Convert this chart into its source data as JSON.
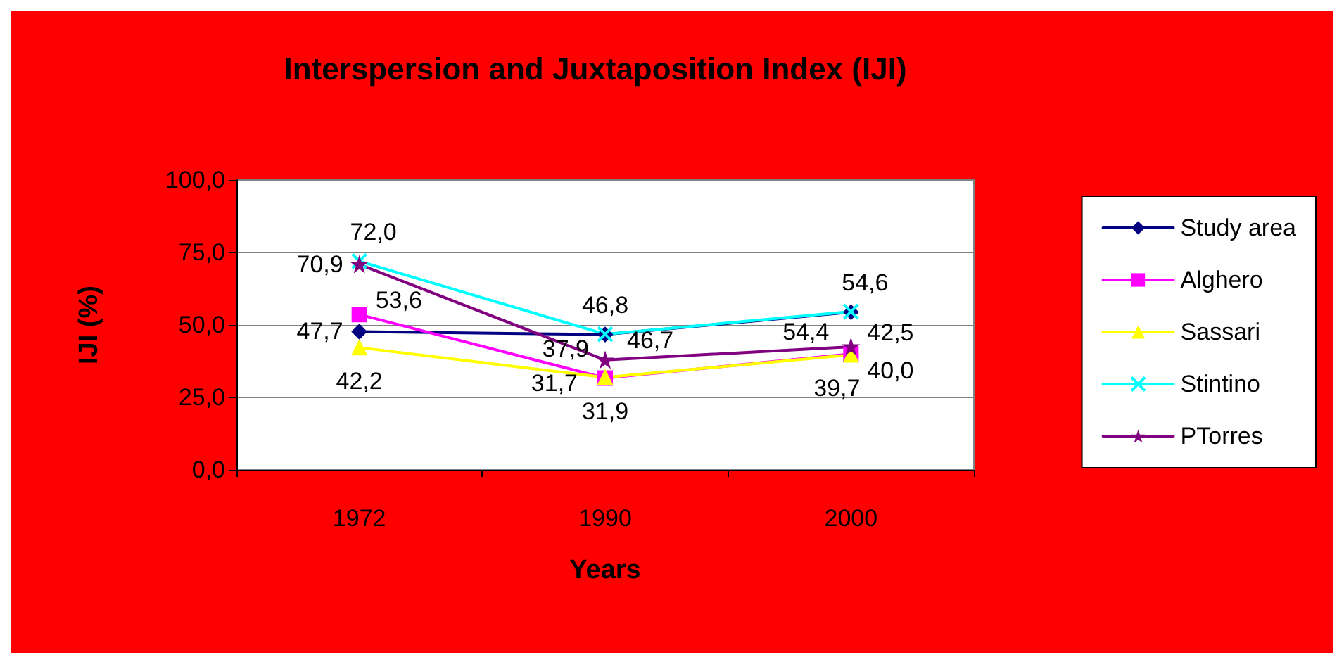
{
  "chart_data": {
    "type": "line",
    "title": "Interspersion and Juxtaposition Index (IJI)",
    "xlabel": "Years",
    "ylabel": "IJI (%)",
    "categories": [
      "1972",
      "1990",
      "2000"
    ],
    "ylim": [
      0,
      100
    ],
    "yticks": [
      {
        "value": 0,
        "label": "0,0"
      },
      {
        "value": 25,
        "label": "25,0"
      },
      {
        "value": 50,
        "label": "50,0"
      },
      {
        "value": 75,
        "label": "75,0"
      },
      {
        "value": 100,
        "label": "100,0"
      }
    ],
    "grid": "y",
    "legend": "right",
    "line_style": "solid",
    "series": [
      {
        "name": "Study area",
        "color": "#000080",
        "marker": "diamond",
        "values": [
          47.7,
          46.7,
          54.4
        ],
        "value_labels": [
          "47,7",
          "46,7",
          "54,4"
        ]
      },
      {
        "name": "Alghero",
        "color": "#ff00ff",
        "marker": "square",
        "values": [
          53.6,
          31.7,
          40.0
        ],
        "value_labels": [
          "53,6",
          "31,7",
          "40,0"
        ]
      },
      {
        "name": "Sassari",
        "color": "#ffff00",
        "marker": "triangle",
        "values": [
          42.2,
          31.9,
          39.7
        ],
        "value_labels": [
          "42,2",
          "31,9",
          "39,7"
        ]
      },
      {
        "name": "Stintino",
        "color": "#00ffff",
        "marker": "cross",
        "values": [
          72.0,
          46.8,
          54.6
        ],
        "value_labels": [
          "72,0",
          "46,8",
          "54,6"
        ]
      },
      {
        "name": "PTorres",
        "color": "#800080",
        "marker": "star",
        "values": [
          70.9,
          37.9,
          42.5
        ],
        "value_labels": [
          "70,9",
          "37,9",
          "42,5"
        ]
      }
    ]
  }
}
